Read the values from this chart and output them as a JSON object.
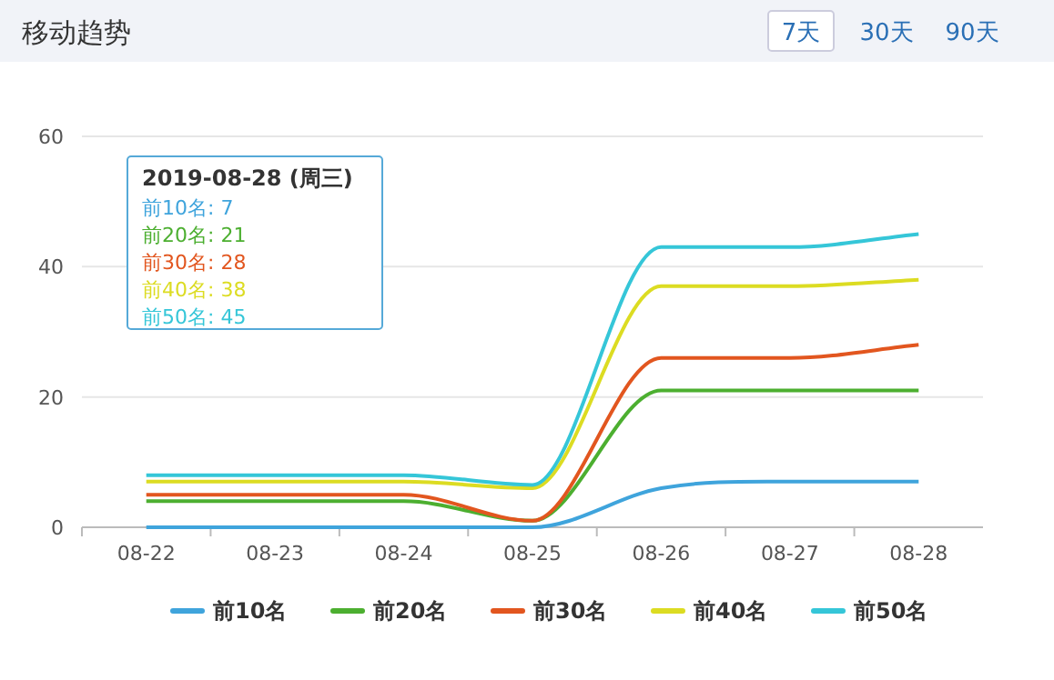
{
  "chart_data": {
    "type": "line",
    "title": "移动趋势",
    "categories": [
      "08-22",
      "08-23",
      "08-24",
      "08-25",
      "08-26",
      "08-27",
      "08-28"
    ],
    "series": [
      {
        "name": "前10名",
        "color": "#3fa4dc",
        "values": [
          0,
          0,
          0,
          0,
          6,
          7,
          7
        ]
      },
      {
        "name": "前20名",
        "color": "#4caf30",
        "values": [
          4,
          4,
          4,
          1,
          21,
          21,
          21
        ]
      },
      {
        "name": "前30名",
        "color": "#e2561f",
        "values": [
          5,
          5,
          5,
          1,
          26,
          26,
          28
        ]
      },
      {
        "name": "前40名",
        "color": "#dcdc22",
        "values": [
          7,
          7,
          7,
          6,
          37,
          37,
          38
        ]
      },
      {
        "name": "前50名",
        "color": "#35c6d8",
        "values": [
          8,
          8,
          8,
          6.5,
          43,
          43,
          45
        ]
      }
    ],
    "ylim": [
      0,
      60
    ],
    "yticks": [
      0,
      20,
      40,
      60
    ],
    "grid": "y",
    "legend": "bottom",
    "marker": "none",
    "line_style": "solid",
    "annotations": [
      "7天",
      "30天",
      "90天",
      "2019-08-28 (周三)",
      "前10名: 7",
      "前20名: 21",
      "前30名: 28",
      "前40名: 38",
      "前50名: 45"
    ]
  }
}
